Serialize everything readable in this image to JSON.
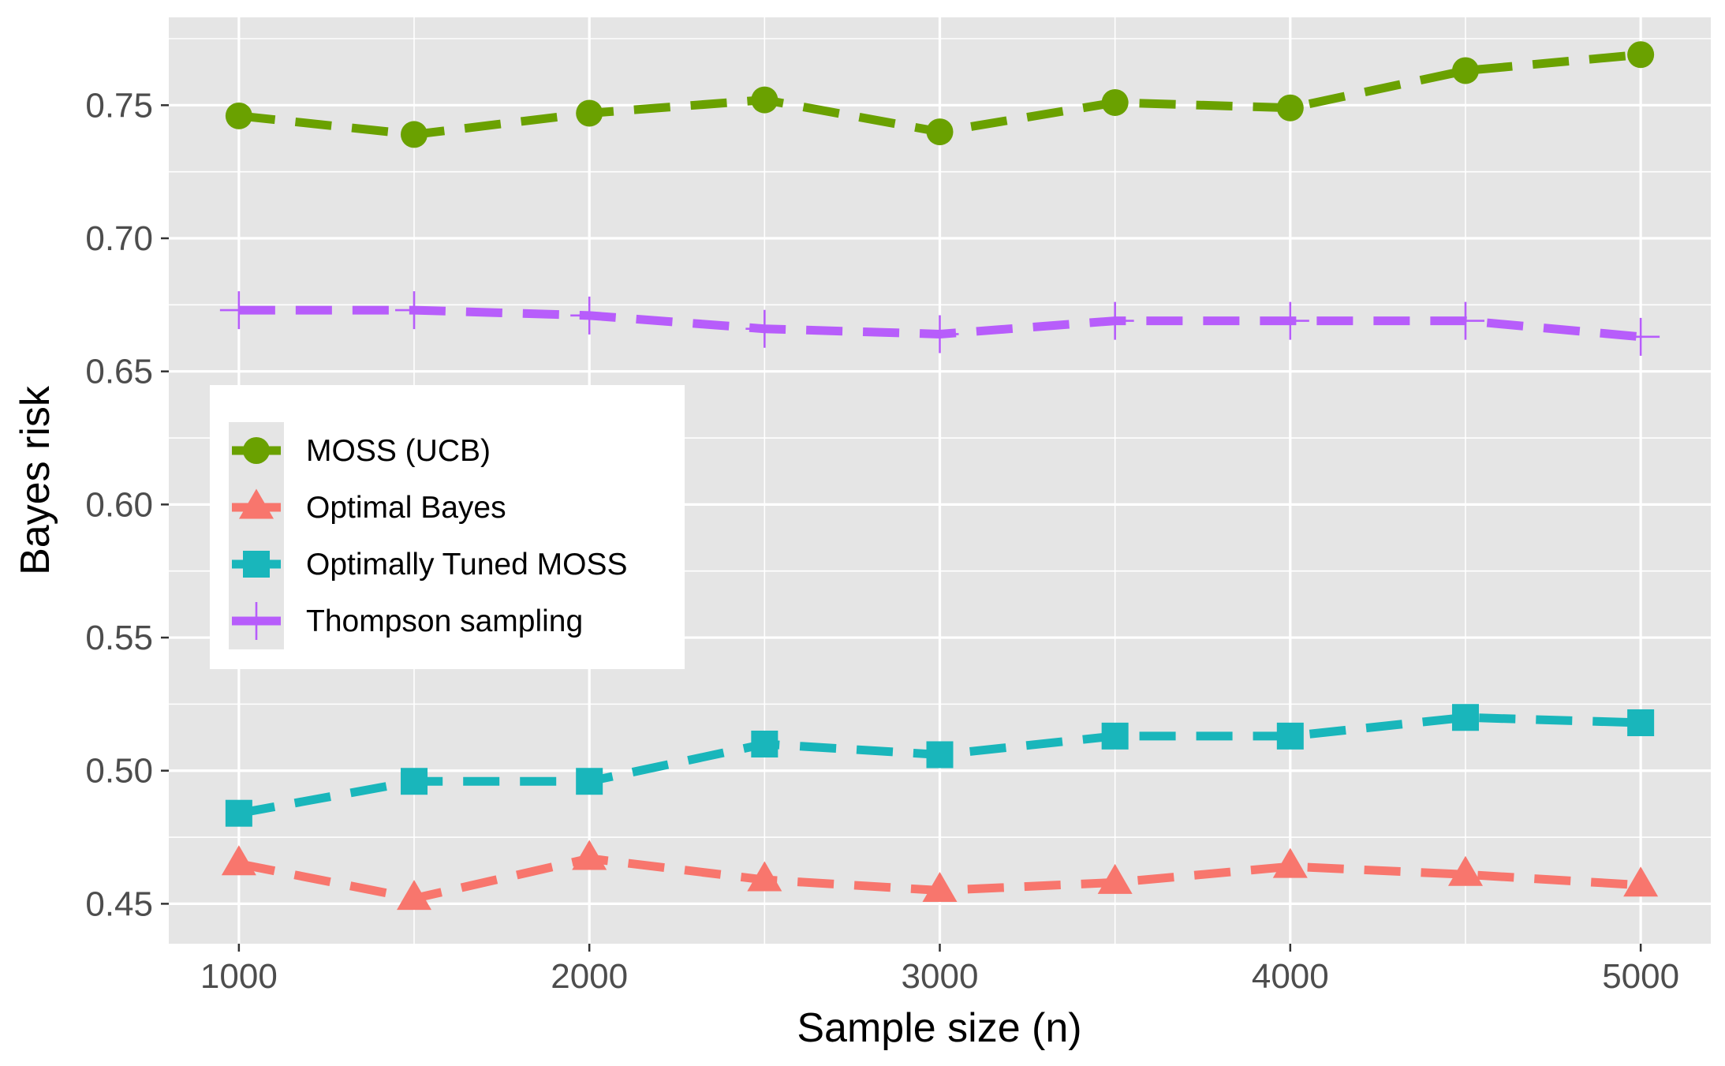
{
  "chart_data": {
    "type": "line",
    "title": "",
    "xlabel": "Sample size (n)",
    "ylabel": "Bayes risk",
    "x": [
      1000,
      1500,
      2000,
      2500,
      3000,
      3500,
      4000,
      4500,
      5000
    ],
    "xlim": [
      800,
      5200
    ],
    "ylim": [
      0.435,
      0.783
    ],
    "x_major_ticks": [
      1000,
      2000,
      3000,
      4000,
      5000
    ],
    "x_tick_labels": [
      "1000",
      "2000",
      "3000",
      "4000",
      "5000"
    ],
    "x_minor_ticks": [
      1500,
      2500,
      3500,
      4500
    ],
    "y_major_ticks": [
      0.45,
      0.5,
      0.55,
      0.6,
      0.65,
      0.7,
      0.75
    ],
    "y_tick_labels": [
      "0.45",
      "0.50",
      "0.55",
      "0.60",
      "0.65",
      "0.70",
      "0.75"
    ],
    "y_minor_ticks": [
      0.475,
      0.525,
      0.575,
      0.625,
      0.675,
      0.725,
      0.775
    ],
    "grid": true,
    "panel_background": "#e5e5e5",
    "grid_color": "#ffffff",
    "legend_position": "left",
    "series": [
      {
        "name": "MOSS (UCB)",
        "color": "#6aa100",
        "marker": "circle",
        "values": [
          0.746,
          0.739,
          0.747,
          0.752,
          0.74,
          0.751,
          0.749,
          0.763,
          0.769
        ]
      },
      {
        "name": "Optimal Bayes",
        "color": "#f8766d",
        "marker": "triangle",
        "values": [
          0.465,
          0.452,
          0.467,
          0.459,
          0.455,
          0.458,
          0.464,
          0.461,
          0.457
        ]
      },
      {
        "name": "Optimally Tuned MOSS",
        "color": "#19b6bb",
        "marker": "square",
        "values": [
          0.484,
          0.496,
          0.496,
          0.51,
          0.506,
          0.513,
          0.513,
          0.52,
          0.518
        ]
      },
      {
        "name": "Thompson sampling",
        "color": "#b75dfb",
        "marker": "plus",
        "values": [
          0.673,
          0.673,
          0.671,
          0.666,
          0.664,
          0.669,
          0.669,
          0.669,
          0.663
        ]
      }
    ]
  }
}
